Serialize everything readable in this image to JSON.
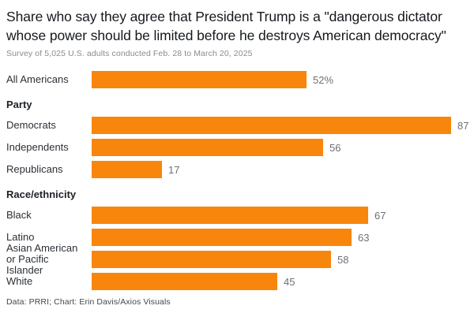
{
  "chart_data": {
    "type": "bar",
    "orientation": "horizontal",
    "title": "Share who say they agree that President Trump is a \"dangerous dictator whose power should be limited before he destroys American democracy\"",
    "subtitle": "Survey of 5,025 U.S. adults conducted Feb. 28 to March 20, 2025",
    "footer": "Data: PRRI; Chart: Erin Davis/Axios Visuals",
    "unit": "%",
    "xlim": [
      0,
      100
    ],
    "grid": false,
    "legend": false,
    "bar_color": "#f8860d",
    "groups": [
      {
        "header": "",
        "rows": [
          {
            "label": "All Americans",
            "value": 52,
            "value_label": "52%"
          }
        ]
      },
      {
        "header": "Party",
        "rows": [
          {
            "label": "Democrats",
            "value": 87,
            "value_label": "87"
          },
          {
            "label": "Independents",
            "value": 56,
            "value_label": "56"
          },
          {
            "label": "Republicans",
            "value": 17,
            "value_label": "17"
          }
        ]
      },
      {
        "header": "Race/ethnicity",
        "rows": [
          {
            "label": "Black",
            "value": 67,
            "value_label": "67"
          },
          {
            "label": "Latino",
            "value": 63,
            "value_label": "63"
          },
          {
            "label": "Asian American or Pacific Islander",
            "value": 58,
            "value_label": "58"
          },
          {
            "label": "White",
            "value": 45,
            "value_label": "45"
          }
        ]
      }
    ]
  }
}
